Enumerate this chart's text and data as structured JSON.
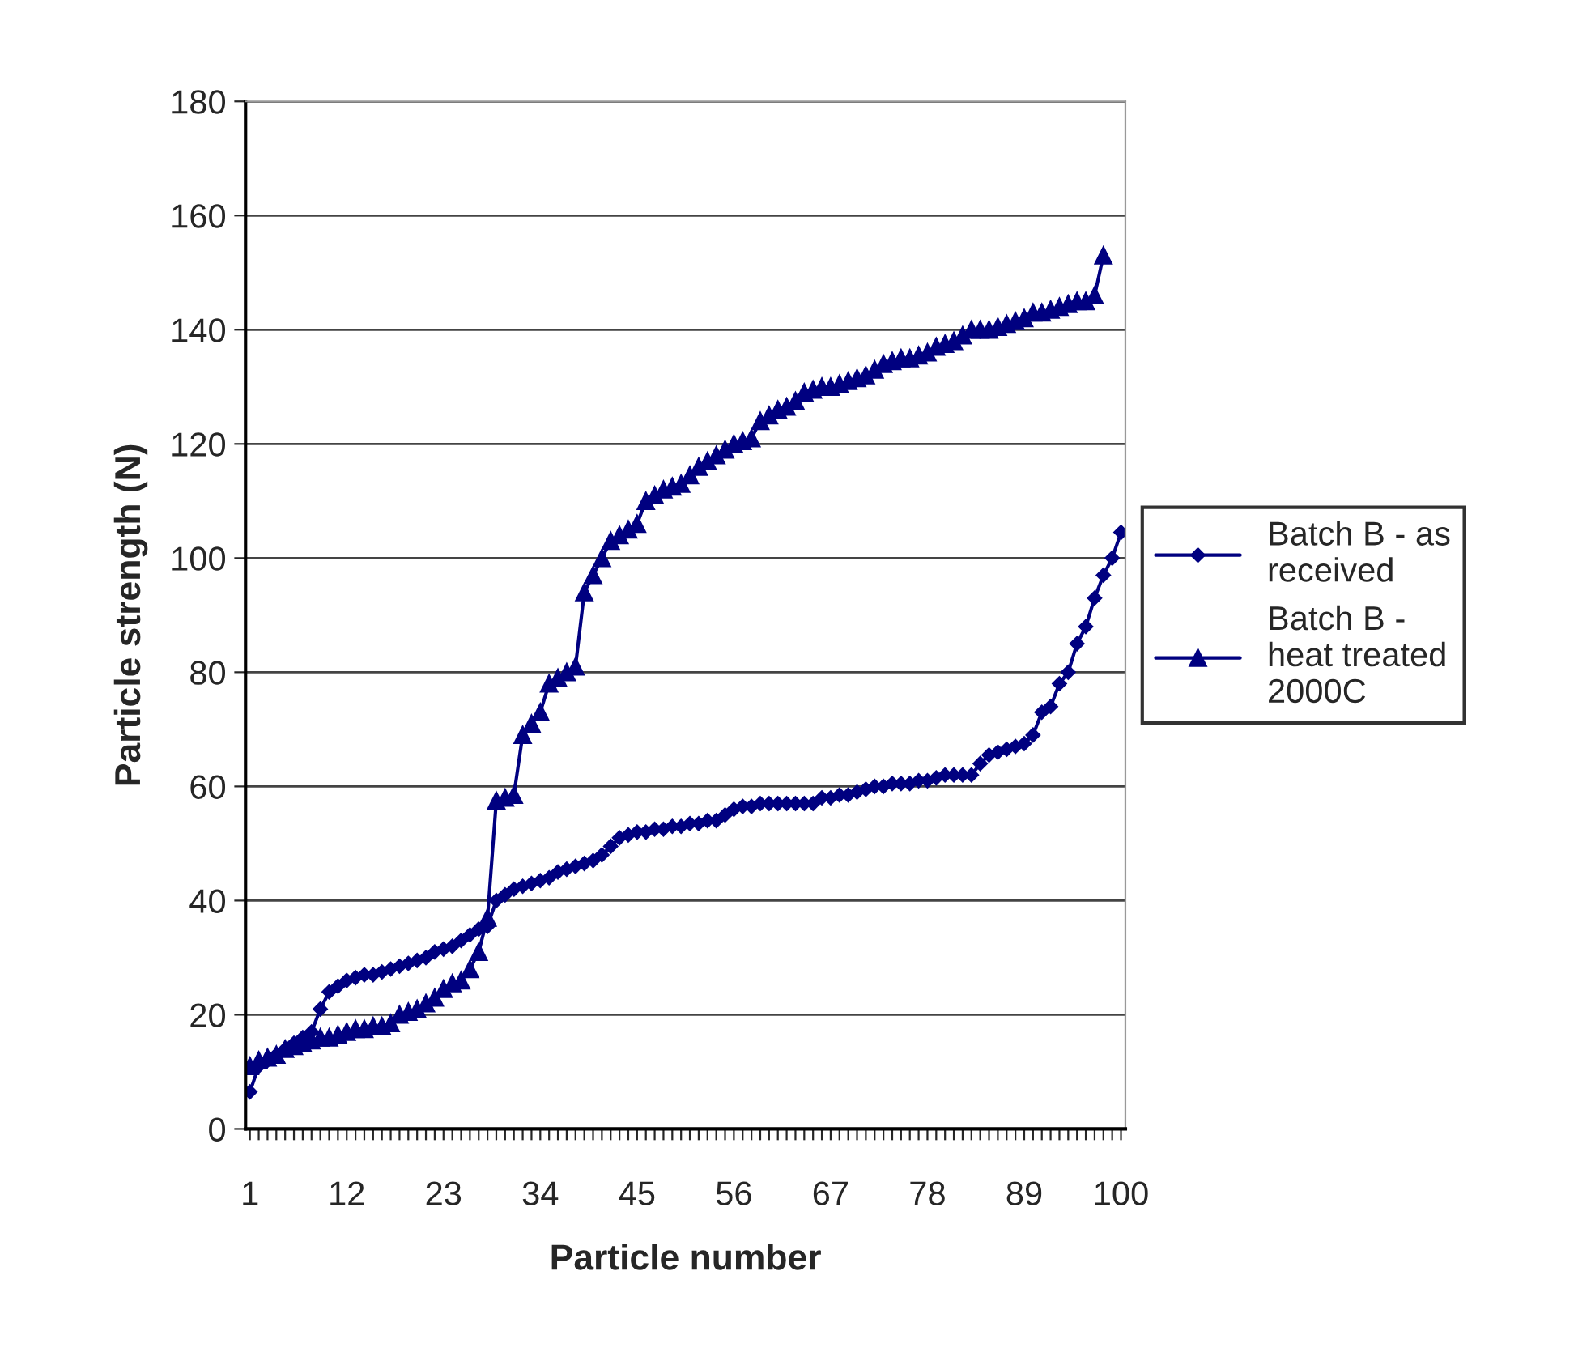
{
  "chart_data": {
    "type": "line",
    "xlabel": "Particle number",
    "ylabel": "Particle strength (N)",
    "categories": [
      "1",
      null,
      null,
      null,
      null,
      null,
      null,
      null,
      null,
      null,
      null,
      "12",
      null,
      null,
      null,
      null,
      null,
      null,
      null,
      null,
      null,
      null,
      "23",
      null,
      null,
      null,
      null,
      null,
      null,
      null,
      null,
      null,
      null,
      "34",
      null,
      null,
      null,
      null,
      null,
      null,
      null,
      null,
      null,
      null,
      "45",
      null,
      null,
      null,
      null,
      null,
      null,
      null,
      null,
      null,
      null,
      "56",
      null,
      null,
      null,
      null,
      null,
      null,
      null,
      null,
      null,
      null,
      "67",
      null,
      null,
      null,
      null,
      null,
      null,
      null,
      null,
      null,
      null,
      "78",
      null,
      null,
      null,
      null,
      null,
      null,
      null,
      null,
      null,
      null,
      "89",
      null,
      null,
      null,
      null,
      null,
      null,
      null,
      null,
      null,
      null,
      "100"
    ],
    "series": [
      {
        "name": "Batch B - as received",
        "color": "#000080",
        "marker": "diamond",
        "values": [
          6.5,
          11,
          12,
          13,
          14,
          15,
          16,
          17,
          21,
          24,
          25,
          26,
          26.5,
          27,
          27,
          27.5,
          28,
          28.5,
          29,
          29.5,
          30,
          31,
          31.5,
          32,
          33,
          34,
          35,
          35.5,
          40,
          41,
          42,
          42.5,
          43,
          43.5,
          44,
          45,
          45.5,
          46,
          46.5,
          47,
          48,
          49.5,
          51,
          51.5,
          52,
          52,
          52.5,
          52.5,
          53,
          53,
          53.5,
          53.5,
          54,
          54,
          55,
          56,
          56.5,
          56.5,
          57,
          57,
          57,
          57,
          57,
          57,
          57,
          58,
          58,
          58.5,
          58.5,
          59,
          59.5,
          60,
          60,
          60.5,
          60.5,
          60.5,
          61,
          61,
          61.5,
          62,
          62,
          62,
          62,
          64,
          65.5,
          66,
          66.5,
          67,
          67.5,
          69,
          73,
          74,
          78,
          80,
          85,
          88,
          93,
          97,
          100,
          104.5
        ]
      },
      {
        "name": "Batch B - heat treated 2000C",
        "color": "#000080",
        "marker": "triangle",
        "values": [
          11,
          12,
          12.5,
          13,
          14,
          14.5,
          15,
          15.5,
          16,
          16,
          16.5,
          17,
          17.5,
          17.5,
          18,
          18,
          18.5,
          20,
          20.5,
          21,
          22,
          23,
          24.5,
          25.5,
          26,
          28,
          31,
          37,
          57.5,
          58,
          58.5,
          69,
          71,
          73,
          78,
          79,
          80,
          81,
          94,
          97,
          100,
          103,
          104,
          105,
          106,
          110,
          111,
          112,
          112.5,
          113,
          114.5,
          116,
          117,
          118,
          119,
          120,
          120.5,
          121,
          124,
          125,
          126,
          126.5,
          127.5,
          129,
          129.5,
          130,
          130,
          130.5,
          131,
          131.5,
          132,
          133,
          134,
          134.5,
          135,
          135,
          135.5,
          136,
          137,
          137.5,
          138,
          139,
          140,
          140,
          140,
          140.5,
          141,
          141.5,
          142,
          143,
          143,
          143.5,
          144,
          144.5,
          145,
          145,
          146,
          153,
          null,
          null
        ]
      }
    ],
    "ylim": [
      0,
      180
    ],
    "yticks": [
      0,
      20,
      40,
      60,
      80,
      100,
      120,
      140,
      160,
      180
    ],
    "grid": "y",
    "legend": "right",
    "line_style": "solid"
  }
}
